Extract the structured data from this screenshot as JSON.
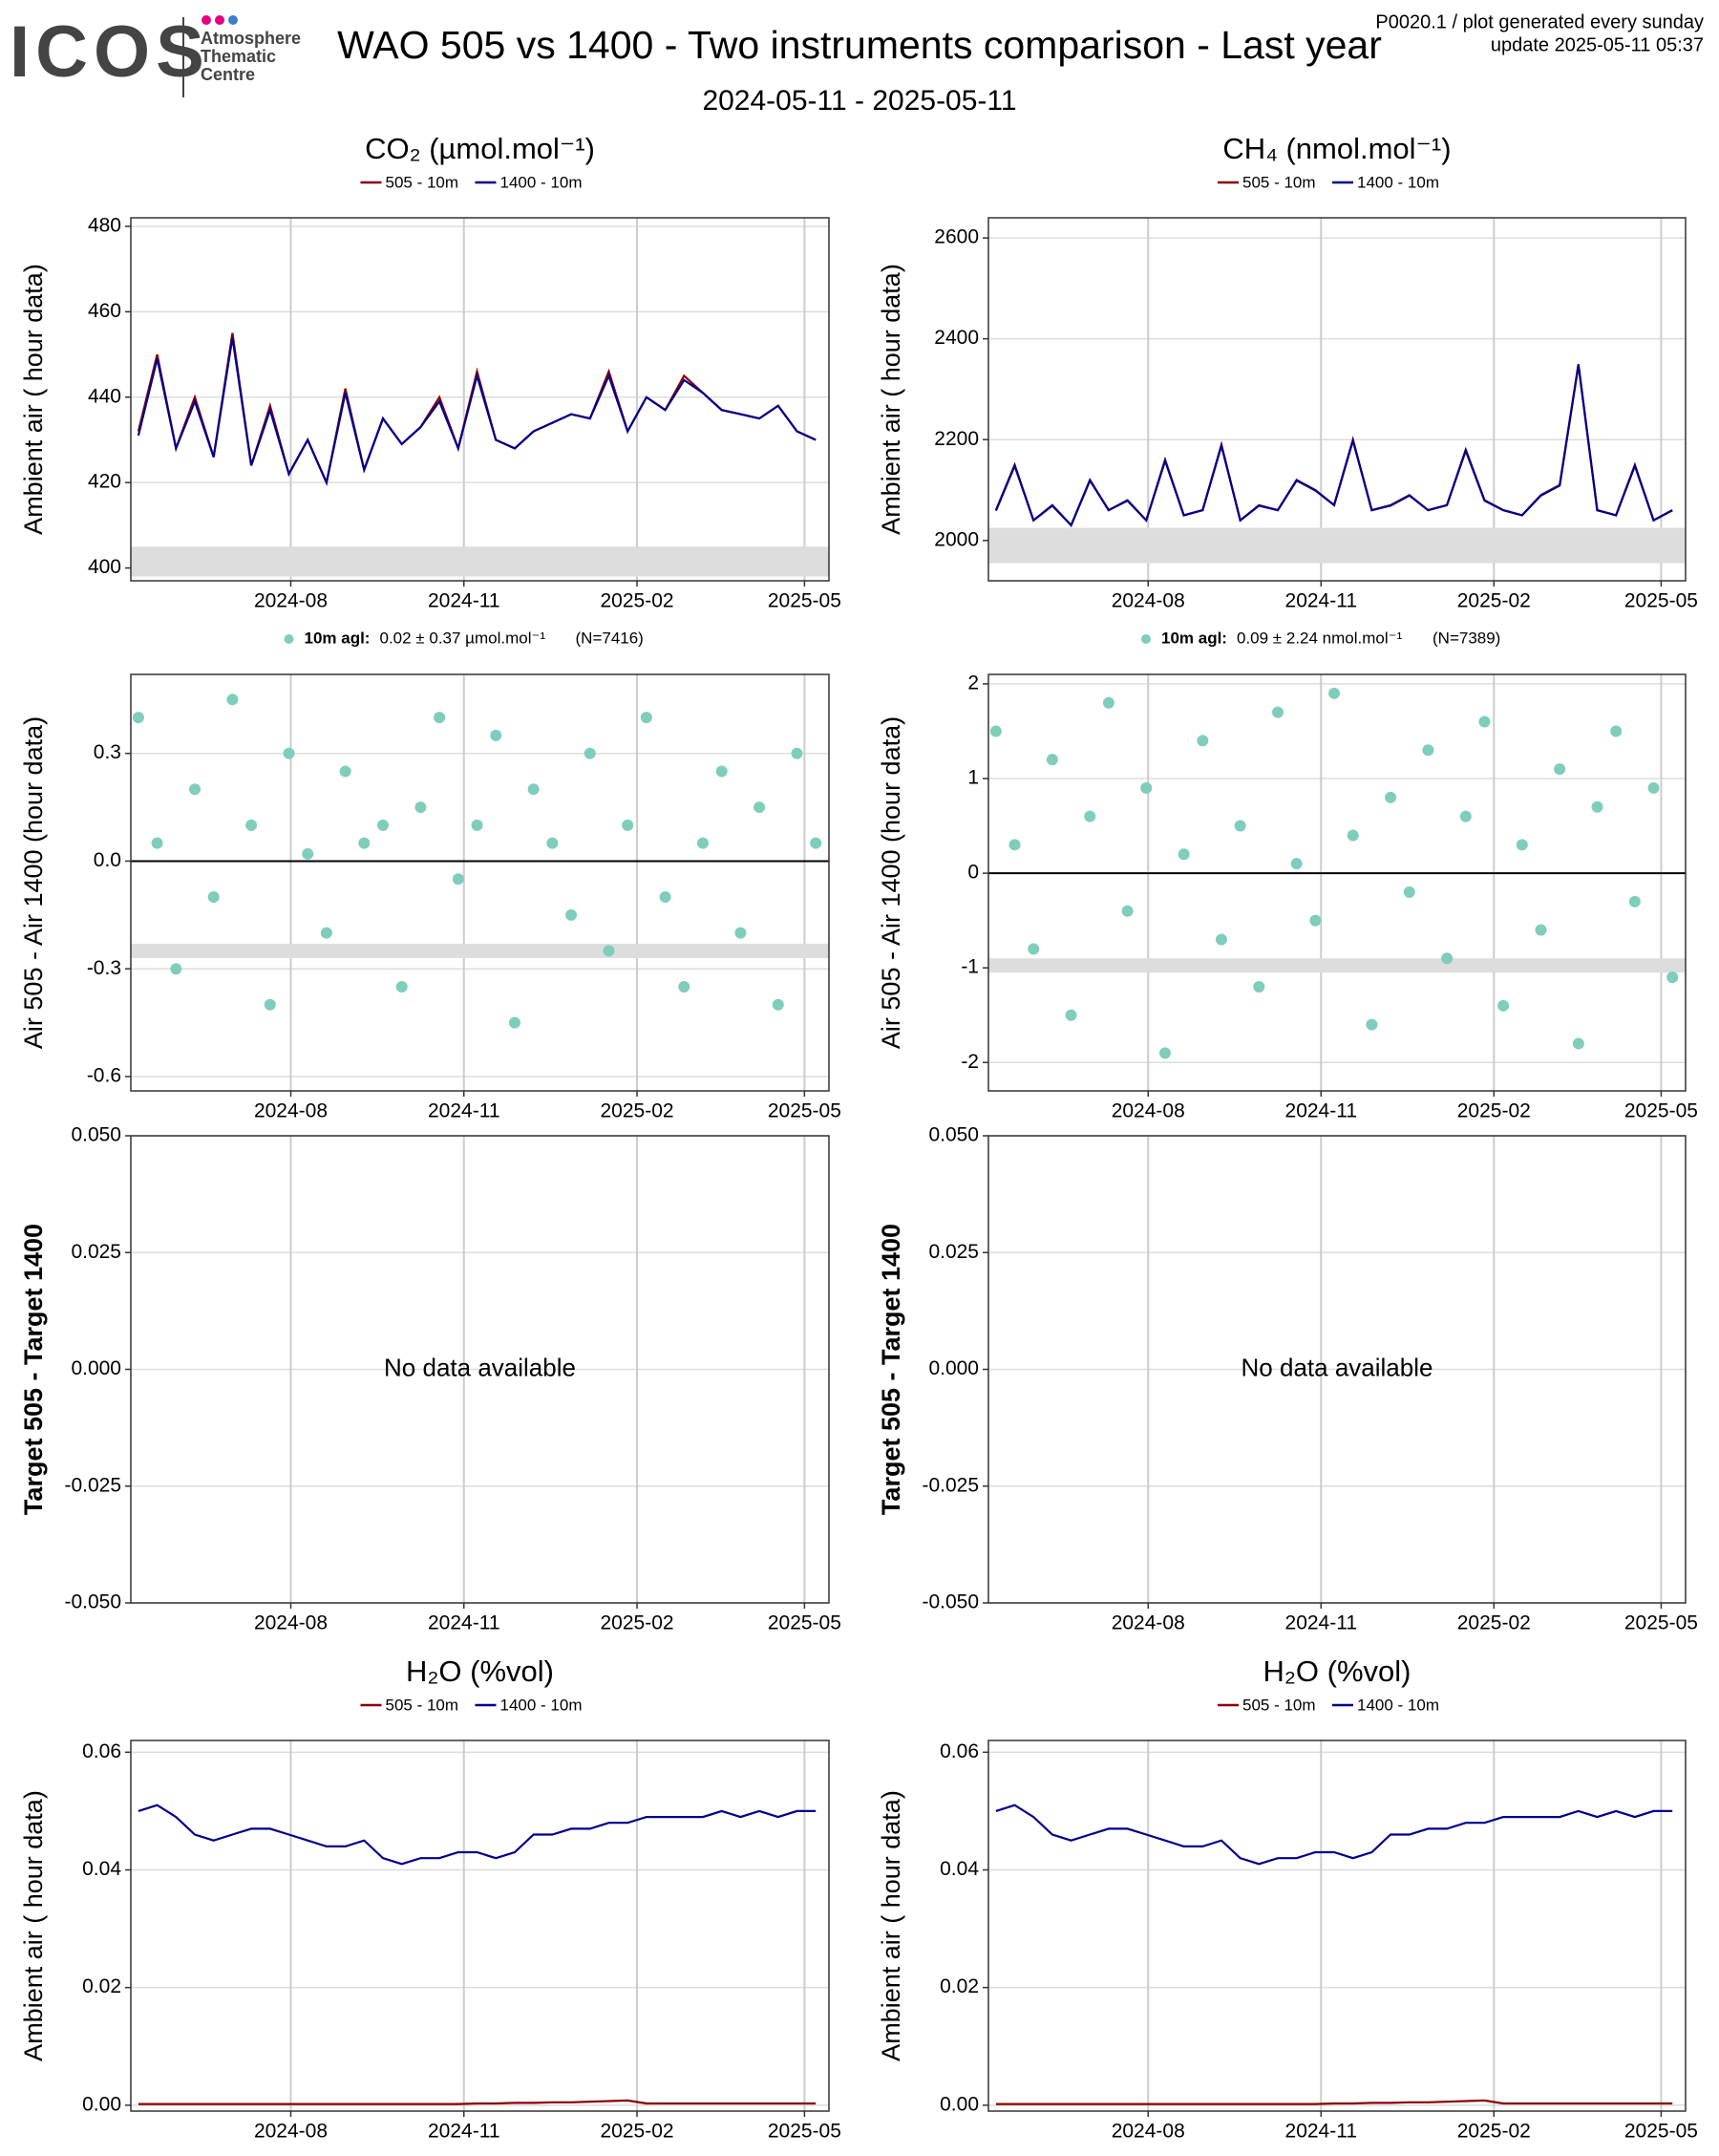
{
  "header": {
    "logo": "ICOS",
    "centre": [
      "Atmosphere",
      "Thematic",
      "Centre"
    ],
    "title": "WAO 505 vs 1400 - Two instruments comparison - Last year",
    "subtitle": "2024-05-11 - 2025-05-11",
    "notes": [
      "P0020.1 / plot generated every sunday",
      "update  2025-05-11 05:37"
    ]
  },
  "chart_data": [
    {
      "type": "line",
      "title": "CO₂ (µmol.mol⁻¹)",
      "ylabel": "Ambient air ( hour data)",
      "xlim": [
        "2024-05-08",
        "2025-05-14"
      ],
      "xticks": [
        "2024-08",
        "2024-11",
        "2025-02",
        "2025-05"
      ],
      "ylim": [
        397,
        482
      ],
      "yticks": [
        400,
        420,
        440,
        460,
        480
      ],
      "grid": true,
      "band": [
        398,
        405
      ],
      "x": [
        "2024-05-12",
        "2024-05-22",
        "2024-06-01",
        "2024-06-11",
        "2024-06-21",
        "2024-07-01",
        "2024-07-11",
        "2024-07-21",
        "2024-07-31",
        "2024-08-10",
        "2024-08-20",
        "2024-08-30",
        "2024-09-09",
        "2024-09-19",
        "2024-09-29",
        "2024-10-09",
        "2024-10-19",
        "2024-10-29",
        "2024-11-08",
        "2024-11-18",
        "2024-11-28",
        "2024-12-08",
        "2024-12-18",
        "2024-12-28",
        "2025-01-07",
        "2025-01-17",
        "2025-01-27",
        "2025-02-06",
        "2025-02-16",
        "2025-02-26",
        "2025-03-08",
        "2025-03-18",
        "2025-03-28",
        "2025-04-07",
        "2025-04-17",
        "2025-04-27",
        "2025-05-07"
      ],
      "series": [
        {
          "name": "505 - 10m",
          "color": "#8b0000",
          "values": [
            432,
            450,
            428,
            440,
            426,
            455,
            424,
            438,
            422,
            430,
            420,
            442,
            423,
            435,
            429,
            433,
            440,
            428,
            446,
            430,
            428,
            432,
            434,
            436,
            435,
            446,
            432,
            440,
            437,
            445,
            441,
            437,
            436,
            435,
            438,
            432,
            430
          ]
        },
        {
          "name": "1400 - 10m",
          "color": "#00008b",
          "values": [
            431,
            449,
            428,
            439,
            426,
            454,
            424,
            437,
            422,
            430,
            420,
            441,
            423,
            435,
            429,
            433,
            439,
            428,
            445,
            430,
            428,
            432,
            434,
            436,
            435,
            445,
            432,
            440,
            437,
            444,
            441,
            437,
            436,
            435,
            438,
            432,
            430
          ]
        }
      ]
    },
    {
      "type": "line",
      "title": "CH₄ (nmol.mol⁻¹)",
      "ylabel": "Ambient air ( hour data)",
      "xlim": [
        "2024-05-08",
        "2025-05-14"
      ],
      "xticks": [
        "2024-08",
        "2024-11",
        "2025-02",
        "2025-05"
      ],
      "ylim": [
        1920,
        2640
      ],
      "yticks": [
        2000,
        2200,
        2400,
        2600
      ],
      "grid": true,
      "band": [
        1955,
        2025
      ],
      "x": [
        "2024-05-12",
        "2024-05-22",
        "2024-06-01",
        "2024-06-11",
        "2024-06-21",
        "2024-07-01",
        "2024-07-11",
        "2024-07-21",
        "2024-07-31",
        "2024-08-10",
        "2024-08-20",
        "2024-08-30",
        "2024-09-09",
        "2024-09-19",
        "2024-09-29",
        "2024-10-09",
        "2024-10-19",
        "2024-10-29",
        "2024-11-08",
        "2024-11-18",
        "2024-11-28",
        "2024-12-08",
        "2024-12-18",
        "2024-12-28",
        "2025-01-07",
        "2025-01-17",
        "2025-01-27",
        "2025-02-06",
        "2025-02-16",
        "2025-02-26",
        "2025-03-08",
        "2025-03-18",
        "2025-03-28",
        "2025-04-07",
        "2025-04-17",
        "2025-04-27",
        "2025-05-07"
      ],
      "series": [
        {
          "name": "505 - 10m",
          "color": "#8b0000",
          "values": [
            2060,
            2150,
            2040,
            2070,
            2030,
            2120,
            2060,
            2080,
            2040,
            2160,
            2050,
            2060,
            2190,
            2040,
            2070,
            2060,
            2120,
            2100,
            2070,
            2200,
            2060,
            2070,
            2090,
            2060,
            2070,
            2180,
            2080,
            2060,
            2050,
            2090,
            2110,
            2350,
            2060,
            2050,
            2150,
            2040,
            2060
          ]
        },
        {
          "name": "1400 - 10m",
          "color": "#00008b",
          "values": [
            2059,
            2148,
            2040,
            2069,
            2030,
            2119,
            2060,
            2079,
            2040,
            2158,
            2050,
            2060,
            2188,
            2040,
            2069,
            2060,
            2119,
            2099,
            2070,
            2198,
            2060,
            2069,
            2089,
            2060,
            2070,
            2178,
            2079,
            2060,
            2050,
            2089,
            2109,
            2348,
            2060,
            2050,
            2148,
            2040,
            2060
          ]
        }
      ]
    },
    {
      "type": "scatter",
      "ylabel": "Air 505 - Air 1400 (hour data)",
      "xlim": [
        "2024-05-08",
        "2025-05-14"
      ],
      "xticks": [
        "2024-08",
        "2024-11",
        "2025-02",
        "2025-05"
      ],
      "ylim": [
        -0.64,
        0.52
      ],
      "yticks": [
        -0.6,
        -0.3,
        {
          "value": 0,
          "label": "0.0"
        },
        0.3
      ],
      "grid": true,
      "band": [
        -0.27,
        -0.23
      ],
      "x": [
        "2024-05-12",
        "2024-05-22",
        "2024-06-01",
        "2024-06-11",
        "2024-06-21",
        "2024-07-01",
        "2024-07-11",
        "2024-07-21",
        "2024-07-31",
        "2024-08-10",
        "2024-08-20",
        "2024-08-30",
        "2024-09-09",
        "2024-09-19",
        "2024-09-29",
        "2024-10-09",
        "2024-10-19",
        "2024-10-29",
        "2024-11-08",
        "2024-11-18",
        "2024-11-28",
        "2024-12-08",
        "2024-12-18",
        "2024-12-28",
        "2025-01-07",
        "2025-01-17",
        "2025-01-27",
        "2025-02-06",
        "2025-02-16",
        "2025-02-26",
        "2025-03-08",
        "2025-03-18",
        "2025-03-28",
        "2025-04-07",
        "2025-04-17",
        "2025-04-27",
        "2025-05-07"
      ],
      "series": [
        {
          "name": "10m agl:",
          "color": "#7fcdbb",
          "values": [
            0.4,
            0.05,
            -0.3,
            0.2,
            -0.1,
            0.45,
            0.1,
            -0.4,
            0.3,
            0.02,
            -0.2,
            0.25,
            0.05,
            0.1,
            -0.35,
            0.15,
            0.4,
            -0.05,
            0.1,
            0.35,
            -0.45,
            0.2,
            0.05,
            -0.15,
            0.3,
            -0.25,
            0.1,
            0.4,
            -0.1,
            -0.35,
            0.05,
            0.25,
            -0.2,
            0.15,
            -0.4,
            0.3,
            0.05
          ]
        }
      ],
      "legend_note": [
        "0.02 ± 0.37 µmol.mol⁻¹",
        "(N=7416)"
      ]
    },
    {
      "type": "scatter",
      "ylabel": "Air 505 - Air 1400 (hour data)",
      "xlim": [
        "2024-05-08",
        "2025-05-14"
      ],
      "xticks": [
        "2024-08",
        "2024-11",
        "2025-02",
        "2025-05"
      ],
      "ylim": [
        -2.3,
        2.1
      ],
      "yticks": [
        -2,
        -1,
        0,
        1,
        2
      ],
      "grid": true,
      "band": [
        -1.05,
        -0.9
      ],
      "x": [
        "2024-05-12",
        "2024-05-22",
        "2024-06-01",
        "2024-06-11",
        "2024-06-21",
        "2024-07-01",
        "2024-07-11",
        "2024-07-21",
        "2024-07-31",
        "2024-08-10",
        "2024-08-20",
        "2024-08-30",
        "2024-09-09",
        "2024-09-19",
        "2024-09-29",
        "2024-10-09",
        "2024-10-19",
        "2024-10-29",
        "2024-11-08",
        "2024-11-18",
        "2024-11-28",
        "2024-12-08",
        "2024-12-18",
        "2024-12-28",
        "2025-01-07",
        "2025-01-17",
        "2025-01-27",
        "2025-02-06",
        "2025-02-16",
        "2025-02-26",
        "2025-03-08",
        "2025-03-18",
        "2025-03-28",
        "2025-04-07",
        "2025-04-17",
        "2025-04-27",
        "2025-05-07"
      ],
      "series": [
        {
          "name": "10m agl:",
          "color": "#7fcdbb",
          "values": [
            1.5,
            0.3,
            -0.8,
            1.2,
            -1.5,
            0.6,
            1.8,
            -0.4,
            0.9,
            -1.9,
            0.2,
            1.4,
            -0.7,
            0.5,
            -1.2,
            1.7,
            0.1,
            -0.5,
            1.9,
            0.4,
            -1.6,
            0.8,
            -0.2,
            1.3,
            -0.9,
            0.6,
            1.6,
            -1.4,
            0.3,
            -0.6,
            1.1,
            -1.8,
            0.7,
            1.5,
            -0.3,
            0.9,
            -1.1
          ]
        }
      ],
      "legend_note": [
        "0.09 ± 2.24 nmol.mol⁻¹",
        "(N=7389)"
      ]
    },
    {
      "type": "line",
      "ylabel": "Target 505 - Target 1400",
      "annotation": "No data available",
      "xlim": [
        "2024-05-08",
        "2025-05-14"
      ],
      "xticks": [
        "2024-08",
        "2024-11",
        "2025-02",
        "2025-05"
      ],
      "ylim": [
        -0.05,
        0.05
      ],
      "yticks": [
        {
          "value": -0.05,
          "label": "-0.050"
        },
        {
          "value": -0.025,
          "label": "-0.025"
        },
        {
          "value": 0,
          "label": "0.000"
        },
        {
          "value": 0.025,
          "label": "0.025"
        },
        {
          "value": 0.05,
          "label": "0.050"
        }
      ],
      "grid": true
    },
    {
      "type": "line",
      "ylabel": "Target 505 - Target 1400",
      "annotation": "No data available",
      "xlim": [
        "2024-05-08",
        "2025-05-14"
      ],
      "xticks": [
        "2024-08",
        "2024-11",
        "2025-02",
        "2025-05"
      ],
      "ylim": [
        -0.05,
        0.05
      ],
      "yticks": [
        {
          "value": -0.05,
          "label": "-0.050"
        },
        {
          "value": -0.025,
          "label": "-0.025"
        },
        {
          "value": 0,
          "label": "0.000"
        },
        {
          "value": 0.025,
          "label": "0.025"
        },
        {
          "value": 0.05,
          "label": "0.050"
        }
      ],
      "grid": true
    },
    {
      "type": "line",
      "title": "H₂O (%vol)",
      "ylabel": "Ambient air ( hour data)",
      "xlim": [
        "2024-05-08",
        "2025-05-14"
      ],
      "xticks": [
        "2024-08",
        "2024-11",
        "2025-02",
        "2025-05"
      ],
      "ylim": [
        -0.001,
        0.062
      ],
      "yticks": [
        {
          "value": 0,
          "label": "0.00"
        },
        0.02,
        0.04,
        0.06
      ],
      "grid": true,
      "x": [
        "2024-05-12",
        "2024-05-22",
        "2024-06-01",
        "2024-06-11",
        "2024-06-21",
        "2024-07-01",
        "2024-07-11",
        "2024-07-21",
        "2024-07-31",
        "2024-08-10",
        "2024-08-20",
        "2024-08-30",
        "2024-09-09",
        "2024-09-19",
        "2024-09-29",
        "2024-10-09",
        "2024-10-19",
        "2024-10-29",
        "2024-11-08",
        "2024-11-18",
        "2024-11-28",
        "2024-12-08",
        "2024-12-18",
        "2024-12-28",
        "2025-01-07",
        "2025-01-17",
        "2025-01-27",
        "2025-02-06",
        "2025-02-16",
        "2025-02-26",
        "2025-03-08",
        "2025-03-18",
        "2025-03-28",
        "2025-04-07",
        "2025-04-17",
        "2025-04-27",
        "2025-05-07"
      ],
      "series": [
        {
          "name": "505 - 10m",
          "color": "#8b0000",
          "values": [
            0.0002,
            0.0002,
            0.0002,
            0.0002,
            0.0002,
            0.0002,
            0.0002,
            0.0002,
            0.0002,
            0.0002,
            0.0002,
            0.0002,
            0.0002,
            0.0002,
            0.0002,
            0.0002,
            0.0002,
            0.0002,
            0.0003,
            0.0003,
            0.0004,
            0.0004,
            0.0005,
            0.0005,
            0.0006,
            0.0007,
            0.0008,
            0.0003,
            0.0003,
            0.0003,
            0.0003,
            0.0003,
            0.0003,
            0.0003,
            0.0003,
            0.0003,
            0.0003
          ]
        },
        {
          "name": "1400 - 10m",
          "color": "#00008b",
          "values": [
            0.05,
            0.051,
            0.049,
            0.046,
            0.045,
            0.046,
            0.047,
            0.047,
            0.046,
            0.045,
            0.044,
            0.044,
            0.045,
            0.042,
            0.041,
            0.042,
            0.042,
            0.043,
            0.043,
            0.042,
            0.043,
            0.046,
            0.046,
            0.047,
            0.047,
            0.048,
            0.048,
            0.049,
            0.049,
            0.049,
            0.049,
            0.05,
            0.049,
            0.05,
            0.049,
            0.05,
            0.05
          ]
        }
      ]
    },
    {
      "type": "line",
      "title": "H₂O (%vol)",
      "ylabel": "Ambient air ( hour data)",
      "xlim": [
        "2024-05-08",
        "2025-05-14"
      ],
      "xticks": [
        "2024-08",
        "2024-11",
        "2025-02",
        "2025-05"
      ],
      "ylim": [
        -0.001,
        0.062
      ],
      "yticks": [
        {
          "value": 0,
          "label": "0.00"
        },
        0.02,
        0.04,
        0.06
      ],
      "grid": true,
      "x": [
        "2024-05-12",
        "2024-05-22",
        "2024-06-01",
        "2024-06-11",
        "2024-06-21",
        "2024-07-01",
        "2024-07-11",
        "2024-07-21",
        "2024-07-31",
        "2024-08-10",
        "2024-08-20",
        "2024-08-30",
        "2024-09-09",
        "2024-09-19",
        "2024-09-29",
        "2024-10-09",
        "2024-10-19",
        "2024-10-29",
        "2024-11-08",
        "2024-11-18",
        "2024-11-28",
        "2024-12-08",
        "2024-12-18",
        "2024-12-28",
        "2025-01-07",
        "2025-01-17",
        "2025-01-27",
        "2025-02-06",
        "2025-02-16",
        "2025-02-26",
        "2025-03-08",
        "2025-03-18",
        "2025-03-28",
        "2025-04-07",
        "2025-04-17",
        "2025-04-27",
        "2025-05-07"
      ],
      "series": [
        {
          "name": "505 - 10m",
          "color": "#8b0000",
          "values": [
            0.0002,
            0.0002,
            0.0002,
            0.0002,
            0.0002,
            0.0002,
            0.0002,
            0.0002,
            0.0002,
            0.0002,
            0.0002,
            0.0002,
            0.0002,
            0.0002,
            0.0002,
            0.0002,
            0.0002,
            0.0002,
            0.0003,
            0.0003,
            0.0004,
            0.0004,
            0.0005,
            0.0005,
            0.0006,
            0.0007,
            0.0008,
            0.0003,
            0.0003,
            0.0003,
            0.0003,
            0.0003,
            0.0003,
            0.0003,
            0.0003,
            0.0003,
            0.0003
          ]
        },
        {
          "name": "1400 - 10m",
          "color": "#00008b",
          "values": [
            0.05,
            0.051,
            0.049,
            0.046,
            0.045,
            0.046,
            0.047,
            0.047,
            0.046,
            0.045,
            0.044,
            0.044,
            0.045,
            0.042,
            0.041,
            0.042,
            0.042,
            0.043,
            0.043,
            0.042,
            0.043,
            0.046,
            0.046,
            0.047,
            0.047,
            0.048,
            0.048,
            0.049,
            0.049,
            0.049,
            0.049,
            0.05,
            0.049,
            0.05,
            0.049,
            0.05,
            0.05
          ]
        }
      ]
    }
  ]
}
